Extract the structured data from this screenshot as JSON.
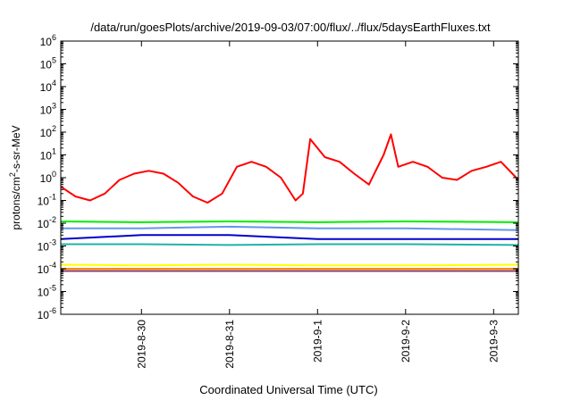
{
  "chart_data": {
    "type": "line",
    "title": "/data/run/goesPlots/archive/2019-09-03/07:00/flux/../flux/5daysEarthFluxes.txt",
    "xlabel": "Coordinated Universal Time (UTC)",
    "ylabel_parts": [
      "protons/cm",
      "2",
      "-s-sr-MeV"
    ],
    "y_scale": "log",
    "ylim": [
      1e-06,
      1000000.0
    ],
    "y_ticks": [
      {
        "base": "10",
        "exp": "-6",
        "value": 1e-06
      },
      {
        "base": "10",
        "exp": "-5",
        "value": 1e-05
      },
      {
        "base": "10",
        "exp": "-4",
        "value": 0.0001
      },
      {
        "base": "10",
        "exp": "-3",
        "value": 0.001
      },
      {
        "base": "10",
        "exp": "-2",
        "value": 0.01
      },
      {
        "base": "10",
        "exp": "-1",
        "value": 0.1
      },
      {
        "base": "10",
        "exp": "0",
        "value": 1
      },
      {
        "base": "10",
        "exp": "1",
        "value": 10
      },
      {
        "base": "10",
        "exp": "2",
        "value": 100
      },
      {
        "base": "10",
        "exp": "3",
        "value": 1000
      },
      {
        "base": "10",
        "exp": "4",
        "value": 10000
      },
      {
        "base": "10",
        "exp": "5",
        "value": 100000
      },
      {
        "base": "10",
        "exp": "6",
        "value": 1000000
      }
    ],
    "xlim": [
      "2019-08-29 02:00",
      "2019-09-03 06:45"
    ],
    "x_ticks": [
      "2019-8-30",
      "2019-8-31",
      "2019-9-1",
      "2019-9-2",
      "2019-9-3"
    ],
    "grid": false,
    "series": [
      {
        "color": "#ff0000",
        "x": [
          "2019-08-29 02:00",
          "2019-08-29 06:00",
          "2019-08-29 10:00",
          "2019-08-29 14:00",
          "2019-08-29 18:00",
          "2019-08-29 22:00",
          "2019-08-30 02:00",
          "2019-08-30 06:00",
          "2019-08-30 10:00",
          "2019-08-30 14:00",
          "2019-08-30 18:00",
          "2019-08-30 22:00",
          "2019-08-31 02:00",
          "2019-08-31 06:00",
          "2019-08-31 10:00",
          "2019-08-31 14:00",
          "2019-08-31 18:00",
          "2019-08-31 20:00",
          "2019-08-31 22:00",
          "2019-09-01 02:00",
          "2019-09-01 06:00",
          "2019-09-01 10:00",
          "2019-09-01 14:00",
          "2019-09-01 18:00",
          "2019-09-01 20:00",
          "2019-09-01 22:00",
          "2019-09-02 02:00",
          "2019-09-02 06:00",
          "2019-09-02 10:00",
          "2019-09-02 14:00",
          "2019-09-02 18:00",
          "2019-09-02 22:00",
          "2019-09-03 02:00",
          "2019-09-03 06:45"
        ],
        "y": [
          0.4,
          0.15,
          0.1,
          0.2,
          0.8,
          1.5,
          2,
          1.5,
          0.6,
          0.15,
          0.08,
          0.2,
          3,
          5,
          3,
          1,
          0.1,
          0.2,
          50,
          8,
          5,
          1.5,
          0.5,
          10,
          80,
          3,
          5,
          3,
          1,
          0.8,
          2,
          3,
          5,
          0.8
        ]
      },
      {
        "color": "#00ee00",
        "x": [
          "2019-08-29 02:00",
          "2019-08-30 00:00",
          "2019-08-31 00:00",
          "2019-09-01 00:00",
          "2019-09-02 00:00",
          "2019-09-03 06:45"
        ],
        "y": [
          0.012,
          0.011,
          0.012,
          0.011,
          0.012,
          0.011
        ]
      },
      {
        "color": "#6495ed",
        "x": [
          "2019-08-29 02:00",
          "2019-08-30 00:00",
          "2019-08-31 00:00",
          "2019-09-01 00:00",
          "2019-09-02 00:00",
          "2019-09-03 06:45"
        ],
        "y": [
          0.006,
          0.006,
          0.007,
          0.006,
          0.006,
          0.005
        ]
      },
      {
        "color": "#0000cd",
        "x": [
          "2019-08-29 02:00",
          "2019-08-30 00:00",
          "2019-08-31 00:00",
          "2019-09-01 00:00",
          "2019-09-02 00:00",
          "2019-09-03 06:45"
        ],
        "y": [
          0.002,
          0.003,
          0.003,
          0.002,
          0.002,
          0.002
        ]
      },
      {
        "color": "#20b2aa",
        "x": [
          "2019-08-29 02:00",
          "2019-08-30 00:00",
          "2019-08-31 00:00",
          "2019-09-01 00:00",
          "2019-09-02 00:00",
          "2019-09-03 06:45"
        ],
        "y": [
          0.0012,
          0.0012,
          0.0011,
          0.0012,
          0.0012,
          0.0011
        ]
      },
      {
        "color": "#ffff00",
        "x": [
          "2019-08-29 02:00",
          "2019-08-30 00:00",
          "2019-08-31 00:00",
          "2019-09-01 00:00",
          "2019-09-02 00:00",
          "2019-09-03 06:45"
        ],
        "y": [
          0.00015,
          0.00014,
          0.00015,
          0.00014,
          0.00014,
          0.00015
        ]
      },
      {
        "color": "#ff8c00",
        "x": [
          "2019-08-29 02:00",
          "2019-08-30 00:00",
          "2019-08-31 00:00",
          "2019-09-01 00:00",
          "2019-09-02 00:00",
          "2019-09-03 06:45"
        ],
        "y": [
          0.0001,
          0.0001,
          0.0001,
          0.0001,
          0.0001,
          0.0001
        ]
      },
      {
        "color": "#8b3a62",
        "x": [
          "2019-08-29 02:00",
          "2019-08-30 00:00",
          "2019-08-31 00:00",
          "2019-09-01 00:00",
          "2019-09-02 00:00",
          "2019-09-03 06:45"
        ],
        "y": [
          8e-05,
          8e-05,
          8e-05,
          8e-05,
          8e-05,
          8e-05
        ]
      }
    ]
  }
}
